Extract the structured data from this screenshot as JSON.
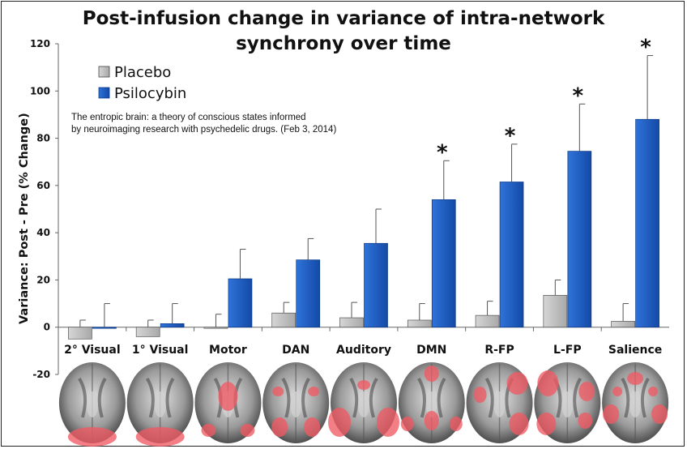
{
  "chart_data": {
    "type": "bar",
    "title_lines": [
      "Post-infusion change in variance of intra-network",
      "synchrony over time"
    ],
    "ylabel": "Variance: Post - Pre (% Change)",
    "xlabel": "",
    "ylim": [
      -20,
      120
    ],
    "yticks": [
      -20,
      0,
      20,
      40,
      60,
      80,
      100,
      120
    ],
    "grid": false,
    "legend_position": "top-left",
    "categories": [
      "2° Visual",
      "1° Visual",
      "Motor",
      "DAN",
      "Auditory",
      "DMN",
      "R-FP",
      "L-FP",
      "Salience"
    ],
    "series": [
      {
        "name": "Placebo",
        "color": "#c4c4c4",
        "values": [
          -5,
          -4,
          -0.5,
          6,
          4,
          3,
          5,
          13.5,
          2.5
        ],
        "error_upper": [
          3,
          3,
          5.5,
          10.5,
          10.5,
          10,
          11,
          20,
          10
        ]
      },
      {
        "name": "Psilocybin",
        "color": "#1d5fc8",
        "values": [
          -0.5,
          1.5,
          20.5,
          28.5,
          35.5,
          54,
          61.5,
          74.5,
          88
        ],
        "error_upper": [
          10,
          10,
          33,
          37.5,
          50,
          70.5,
          77.5,
          94.5,
          115
        ]
      }
    ],
    "significance_marker": "*",
    "significant_categories": [
      "DMN",
      "R-FP",
      "L-FP",
      "Salience"
    ]
  },
  "source_note": [
    "The entropic brain: a theory of conscious states informed",
    "by neuroimaging research with psychedelic drugs. (Feb 3, 2014)"
  ],
  "brain_icons": [
    "occipital-highlight",
    "occipital-highlight",
    "motor-highlight",
    "dorsal-attention-highlight",
    "temporal-highlight",
    "default-mode-highlight",
    "right-frontoparietal-highlight",
    "left-frontoparietal-highlight",
    "salience-highlight"
  ],
  "colors": {
    "placebo": "#c4c4c4",
    "psilocybin": "#1d5fc8",
    "highlight": "#ef5a64",
    "axis": "#666666"
  }
}
